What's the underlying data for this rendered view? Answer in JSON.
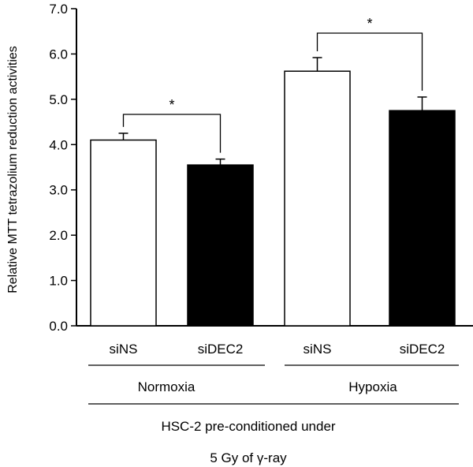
{
  "chart_data": {
    "type": "bar",
    "ylabel": "Relative MTT tetrazolium reduction activities",
    "ylim": [
      0,
      7
    ],
    "yticks": [
      "0.0",
      "1.0",
      "2.0",
      "3.0",
      "4.0",
      "5.0",
      "6.0",
      "7.0"
    ],
    "categories": [
      "siNS",
      "siDEC2",
      "siNS",
      "siDEC2"
    ],
    "groups": [
      "Normoxia",
      "Hypoxia"
    ],
    "values": [
      4.1,
      3.55,
      5.62,
      4.75
    ],
    "errors": [
      0.15,
      0.13,
      0.3,
      0.3
    ],
    "bar_colors": [
      "#ffffff",
      "#000000",
      "#ffffff",
      "#000000"
    ],
    "significance": [
      "*",
      "*"
    ],
    "xlabel_line1": "HSC-2 pre-conditioned under",
    "xlabel_line2_prefix": "5 Gy of ",
    "xlabel_line2_greek": "γ",
    "xlabel_line2_suffix": "-ray",
    "grid": false
  }
}
